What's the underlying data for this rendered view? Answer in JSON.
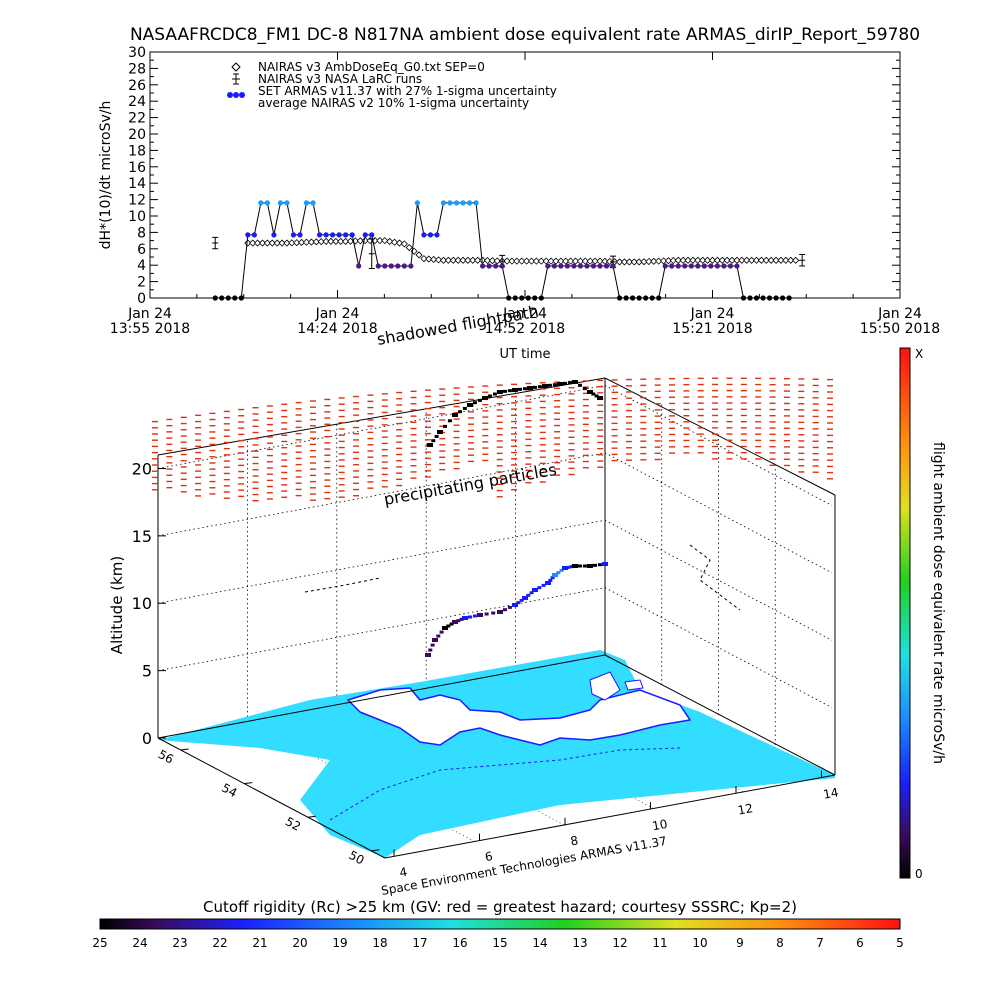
{
  "title": "NASAAFRCDC8_FM1 DC-8   N817NA ambient dose equivalent rate ARMAS_dirIP_Report_59780",
  "chart_data": [
    {
      "type": "scatter",
      "ylabel": "dH*(10)/dt microSv/h",
      "xlabel": "UT time",
      "ylim": [
        0,
        30
      ],
      "yticks": [
        0,
        2,
        4,
        6,
        8,
        10,
        12,
        14,
        16,
        18,
        20,
        22,
        24,
        26,
        28,
        30
      ],
      "xlim": [
        "13:55",
        "15:50"
      ],
      "xtick_labels": [
        {
          "top": "Jan 24",
          "bottom": "13:55 2018"
        },
        {
          "top": "Jan 24",
          "bottom": "14:24 2018"
        },
        {
          "top": "Jan 24",
          "bottom": "14:52 2018"
        },
        {
          "top": "Jan 24",
          "bottom": "15:21 2018"
        },
        {
          "top": "Jan 24",
          "bottom": "15:50 2018"
        }
      ],
      "legend_position": "top-left",
      "legend": [
        "NAIRAS v3 AmbDoseEq_G0.txt SEP=0",
        "NAIRAS v3 NASA LaRC runs",
        "SET ARMAS v11.37 with 27% 1-sigma uncertainty",
        "average NAIRAS v2 10% 1-sigma uncertainty"
      ],
      "series": [
        {
          "name": "NAIRAS v3 AmbDoseEq_G0.txt SEP=0",
          "x": [
            "14:10",
            "14:13",
            "14:16",
            "14:19",
            "14:22",
            "14:25",
            "14:28",
            "14:31",
            "14:34",
            "14:37",
            "14:40",
            "14:43",
            "14:46",
            "14:49",
            "14:52",
            "14:55",
            "14:58",
            "15:01",
            "15:04",
            "15:07",
            "15:10",
            "15:13",
            "15:16",
            "15:19",
            "15:22",
            "15:25",
            "15:28",
            "15:31",
            "15:34"
          ],
          "values": [
            6.7,
            6.7,
            6.7,
            6.8,
            6.9,
            6.9,
            7.0,
            7.0,
            6.6,
            4.8,
            4.6,
            4.6,
            4.6,
            4.5,
            4.5,
            4.5,
            4.5,
            4.5,
            4.5,
            4.4,
            4.4,
            4.5,
            4.6,
            4.6,
            4.6,
            4.6,
            4.6,
            4.6,
            4.6
          ]
        },
        {
          "name": "NAIRAS v3 NASA LaRC runs",
          "x": [
            "14:05",
            "14:29",
            "14:49",
            "15:06",
            "15:35"
          ],
          "values": [
            6.7,
            5.4,
            4.5,
            4.4,
            4.6
          ]
        },
        {
          "name": "SET ARMAS v11.37 with 27% 1-sigma uncertainty",
          "x": [
            "14:05",
            "14:06",
            "14:07",
            "14:08",
            "14:09",
            "14:10",
            "14:11",
            "14:12",
            "14:13",
            "14:14",
            "14:15",
            "14:16",
            "14:17",
            "14:18",
            "14:19",
            "14:20",
            "14:21",
            "14:22",
            "14:23",
            "14:24",
            "14:25",
            "14:26",
            "14:27",
            "14:28",
            "14:29",
            "14:30",
            "14:31",
            "14:32",
            "14:33",
            "14:34",
            "14:35",
            "14:36",
            "14:37",
            "14:38",
            "14:39",
            "14:40",
            "14:41",
            "14:42",
            "14:43",
            "14:44",
            "14:45",
            "14:46",
            "14:47",
            "14:48",
            "14:49",
            "14:50",
            "14:51",
            "14:52",
            "14:53",
            "14:54",
            "14:55",
            "14:56",
            "14:57",
            "14:58",
            "14:59",
            "15:00",
            "15:01",
            "15:02",
            "15:03",
            "15:04",
            "15:05",
            "15:06",
            "15:07",
            "15:08",
            "15:09",
            "15:10",
            "15:11",
            "15:12",
            "15:13",
            "15:14",
            "15:15",
            "15:16",
            "15:17",
            "15:18",
            "15:19",
            "15:20",
            "15:21",
            "15:22",
            "15:23",
            "15:24",
            "15:25",
            "15:26",
            "15:27",
            "15:28",
            "15:29",
            "15:30",
            "15:31",
            "15:32",
            "15:33"
          ],
          "values": [
            0,
            0,
            0,
            0,
            0,
            7.7,
            7.7,
            11.6,
            11.6,
            7.7,
            11.6,
            11.6,
            7.7,
            7.7,
            11.6,
            11.6,
            7.7,
            7.7,
            7.7,
            7.7,
            7.7,
            7.7,
            3.9,
            7.7,
            7.7,
            3.9,
            3.9,
            3.9,
            3.9,
            3.9,
            3.9,
            11.6,
            7.7,
            7.7,
            7.7,
            11.6,
            11.6,
            11.6,
            11.6,
            11.6,
            11.6,
            3.9,
            3.9,
            3.9,
            3.9,
            0,
            0,
            0,
            0,
            0,
            0,
            3.9,
            3.9,
            3.9,
            3.9,
            3.9,
            3.9,
            3.9,
            3.9,
            3.9,
            3.9,
            3.9,
            0,
            0,
            0,
            0,
            0,
            0,
            0,
            3.9,
            3.9,
            3.9,
            3.9,
            3.9,
            3.9,
            3.9,
            3.9,
            3.9,
            3.9,
            3.9,
            3.9,
            0,
            0,
            0,
            0,
            0,
            0,
            0,
            0
          ]
        }
      ]
    },
    {
      "type": "scatter",
      "ylabel": "Altitude (km)",
      "zticks": [
        0,
        5,
        10,
        15,
        20
      ],
      "latitude_ticks": [
        50,
        52,
        54,
        56
      ],
      "longitude_ticks": [
        4,
        6,
        8,
        10,
        12,
        14
      ],
      "annotations": [
        "shadowed flightpath",
        "precipitating particles"
      ],
      "footer": "Space Environment Technologies ARMAS v11.37"
    }
  ],
  "colorbar_right": {
    "label": "flight ambient dose equivalent rate microSv/h",
    "top_label": "X",
    "bottom_label": "0"
  },
  "colorbar_bottom": {
    "title": "Cutoff rigidity (Rc) >25 km (GV: red = greatest hazard; courtesy SSSRC; Kp=2)",
    "tick_labels": [
      "25",
      "24",
      "23",
      "22",
      "21",
      "20",
      "19",
      "18",
      "17",
      "16",
      "15",
      "14",
      "13",
      "12",
      "11",
      "10",
      "9",
      "8",
      "7",
      "6",
      "5"
    ]
  },
  "colors": {
    "nairas_marker": "#000000",
    "armas_low": "#000000",
    "armas_mid": "#4a1a8a",
    "armas_high": "#1a1aff",
    "armas_top": "#1a9bff",
    "curtain": "#e03010",
    "land": "#33ddff",
    "coast": "#1a1aff"
  }
}
